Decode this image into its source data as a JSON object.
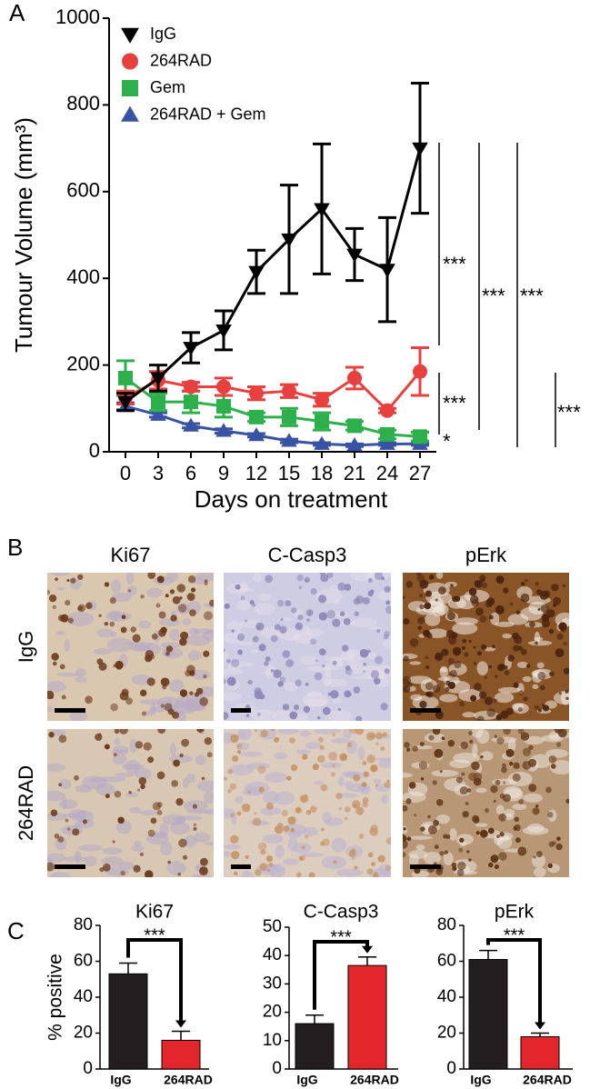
{
  "panel_labels": [
    "A",
    "B",
    "C"
  ],
  "chart_data": [
    {
      "type": "line",
      "ylabel": "Tumour Volume (mm³)",
      "xlabel": "Days on treatment",
      "x": [
        0,
        3,
        6,
        9,
        12,
        15,
        18,
        21,
        24,
        27
      ],
      "xlim": [
        -1.5,
        28.5
      ],
      "xticks": [
        0,
        3,
        6,
        9,
        12,
        15,
        18,
        21,
        24,
        27
      ],
      "ylim": [
        0,
        1000
      ],
      "yticks": [
        0,
        200,
        400,
        600,
        800,
        1000
      ],
      "legend": "upper left",
      "series": [
        {
          "name": "IgG",
          "color": "#000000",
          "marker": "triangle-down",
          "values": [
            115,
            170,
            240,
            280,
            415,
            490,
            560,
            455,
            420,
            700
          ],
          "errors": [
            20,
            30,
            35,
            45,
            50,
            125,
            150,
            60,
            120,
            150
          ]
        },
        {
          "name": "264RAD",
          "color": "#e8403f",
          "marker": "circle",
          "values": [
            125,
            165,
            150,
            150,
            135,
            140,
            120,
            170,
            95,
            185
          ],
          "errors": [
            15,
            20,
            10,
            20,
            15,
            15,
            15,
            25,
            5,
            55
          ]
        },
        {
          "name": "Gem",
          "color": "#2db04b",
          "marker": "square",
          "values": [
            170,
            115,
            115,
            105,
            80,
            80,
            70,
            60,
            40,
            35
          ],
          "errors": [
            40,
            20,
            25,
            25,
            10,
            20,
            20,
            10,
            10,
            10
          ]
        },
        {
          "name": "264RAD + Gem",
          "color": "#3953a4",
          "marker": "triangle-up",
          "values": [
            105,
            85,
            60,
            48,
            38,
            25,
            18,
            15,
            18,
            18
          ],
          "errors": [
            8,
            5,
            5,
            5,
            4,
            4,
            3,
            3,
            3,
            3
          ]
        }
      ],
      "annotations": [
        "***",
        "***",
        "***",
        "***",
        "***",
        "*"
      ]
    },
    {
      "type": "bar",
      "title": "Ki67",
      "ylabel": "% positive",
      "categories": [
        "IgG",
        "264RAD"
      ],
      "values": [
        53,
        16
      ],
      "errors": [
        6,
        5
      ],
      "colors": [
        "#231f20",
        "#e3262b"
      ],
      "ylim": [
        0,
        80
      ],
      "yticks": [
        0,
        20,
        40,
        60,
        80
      ],
      "annotation": "***"
    },
    {
      "type": "bar",
      "title": "C-Casp3",
      "categories": [
        "IgG",
        "264RAD"
      ],
      "values": [
        16,
        36.5
      ],
      "errors": [
        3,
        3
      ],
      "colors": [
        "#231f20",
        "#e3262b"
      ],
      "ylim": [
        0,
        50
      ],
      "yticks": [
        0,
        10,
        20,
        30,
        40,
        50
      ],
      "annotation": "***"
    },
    {
      "type": "bar",
      "title": "pErk",
      "categories": [
        "IgG",
        "264RAD"
      ],
      "values": [
        61,
        18
      ],
      "errors": [
        5,
        2
      ],
      "colors": [
        "#231f20",
        "#e3262b"
      ],
      "ylim": [
        0,
        80
      ],
      "yticks": [
        0,
        20,
        40,
        60,
        80
      ],
      "annotation": "***"
    }
  ],
  "micrographs": {
    "columns": [
      "Ki67",
      "C-Casp3",
      "pErk"
    ],
    "rows": [
      "IgG",
      "264RAD"
    ]
  }
}
